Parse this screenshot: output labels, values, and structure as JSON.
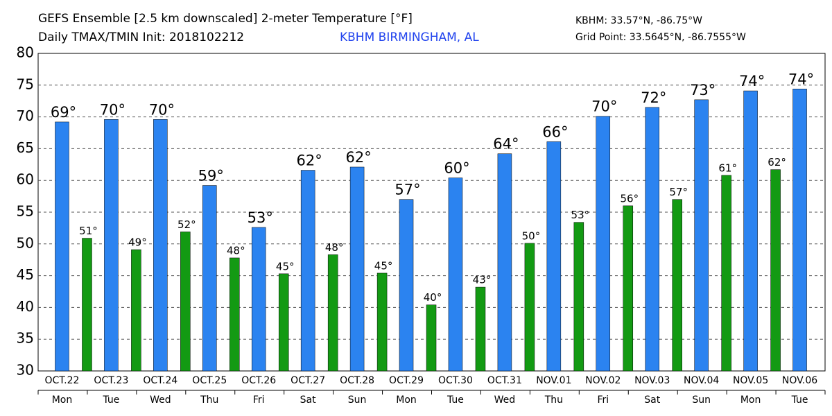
{
  "chart_data": {
    "type": "bar",
    "title": "GEFS Ensemble [2.5 km downscaled] 2-meter Temperature [°F]",
    "subtitle": "Daily TMAX/TMIN Init: 2018102212",
    "station": "KBHM BIRMINGHAM, AL",
    "station_coords": "KBHM: 33.57°N, -86.75°W",
    "grid_point": "Grid Point: 33.5645°N, -86.7555°W",
    "categories": [
      "OCT.22",
      "OCT.23",
      "OCT.24",
      "OCT.25",
      "OCT.26",
      "OCT.27",
      "OCT.28",
      "OCT.29",
      "OCT.30",
      "OCT.31",
      "NOV.01",
      "NOV.02",
      "NOV.03",
      "NOV.04",
      "NOV.05",
      "NOV.06"
    ],
    "weekdays": [
      "Mon",
      "Tue",
      "Wed",
      "Thu",
      "Fri",
      "Sat",
      "Sun",
      "Mon",
      "Tue",
      "Wed",
      "Thu",
      "Fri",
      "Sat",
      "Sun",
      "Mon",
      "Tue"
    ],
    "series": [
      {
        "color": "#2b83f0",
        "values": [
          69.2,
          69.6,
          69.6,
          59.2,
          52.6,
          61.6,
          62.1,
          57.0,
          60.4,
          64.2,
          66.1,
          70.1,
          71.5,
          72.7,
          74.1,
          74.4
        ],
        "value_labels": [
          "69°",
          "70°",
          "70°",
          "59°",
          "53°",
          "62°",
          "62°",
          "57°",
          "60°",
          "64°",
          "66°",
          "70°",
          "72°",
          "73°",
          "74°",
          "74°"
        ]
      },
      {
        "color": "#139a13",
        "values": [
          50.9,
          49.1,
          51.9,
          47.8,
          45.3,
          48.3,
          45.4,
          40.4,
          43.2,
          50.1,
          53.4,
          56.0,
          57.0,
          60.8,
          61.7,
          null
        ],
        "value_labels": [
          "51°",
          "49°",
          "52°",
          "48°",
          "45°",
          "48°",
          "45°",
          "40°",
          "43°",
          "50°",
          "53°",
          "56°",
          "57°",
          "61°",
          "62°",
          null
        ]
      }
    ],
    "ylim": [
      30,
      80
    ],
    "yticks": [
      30,
      35,
      40,
      45,
      50,
      55,
      60,
      65,
      70,
      75,
      80
    ],
    "grid": true
  }
}
